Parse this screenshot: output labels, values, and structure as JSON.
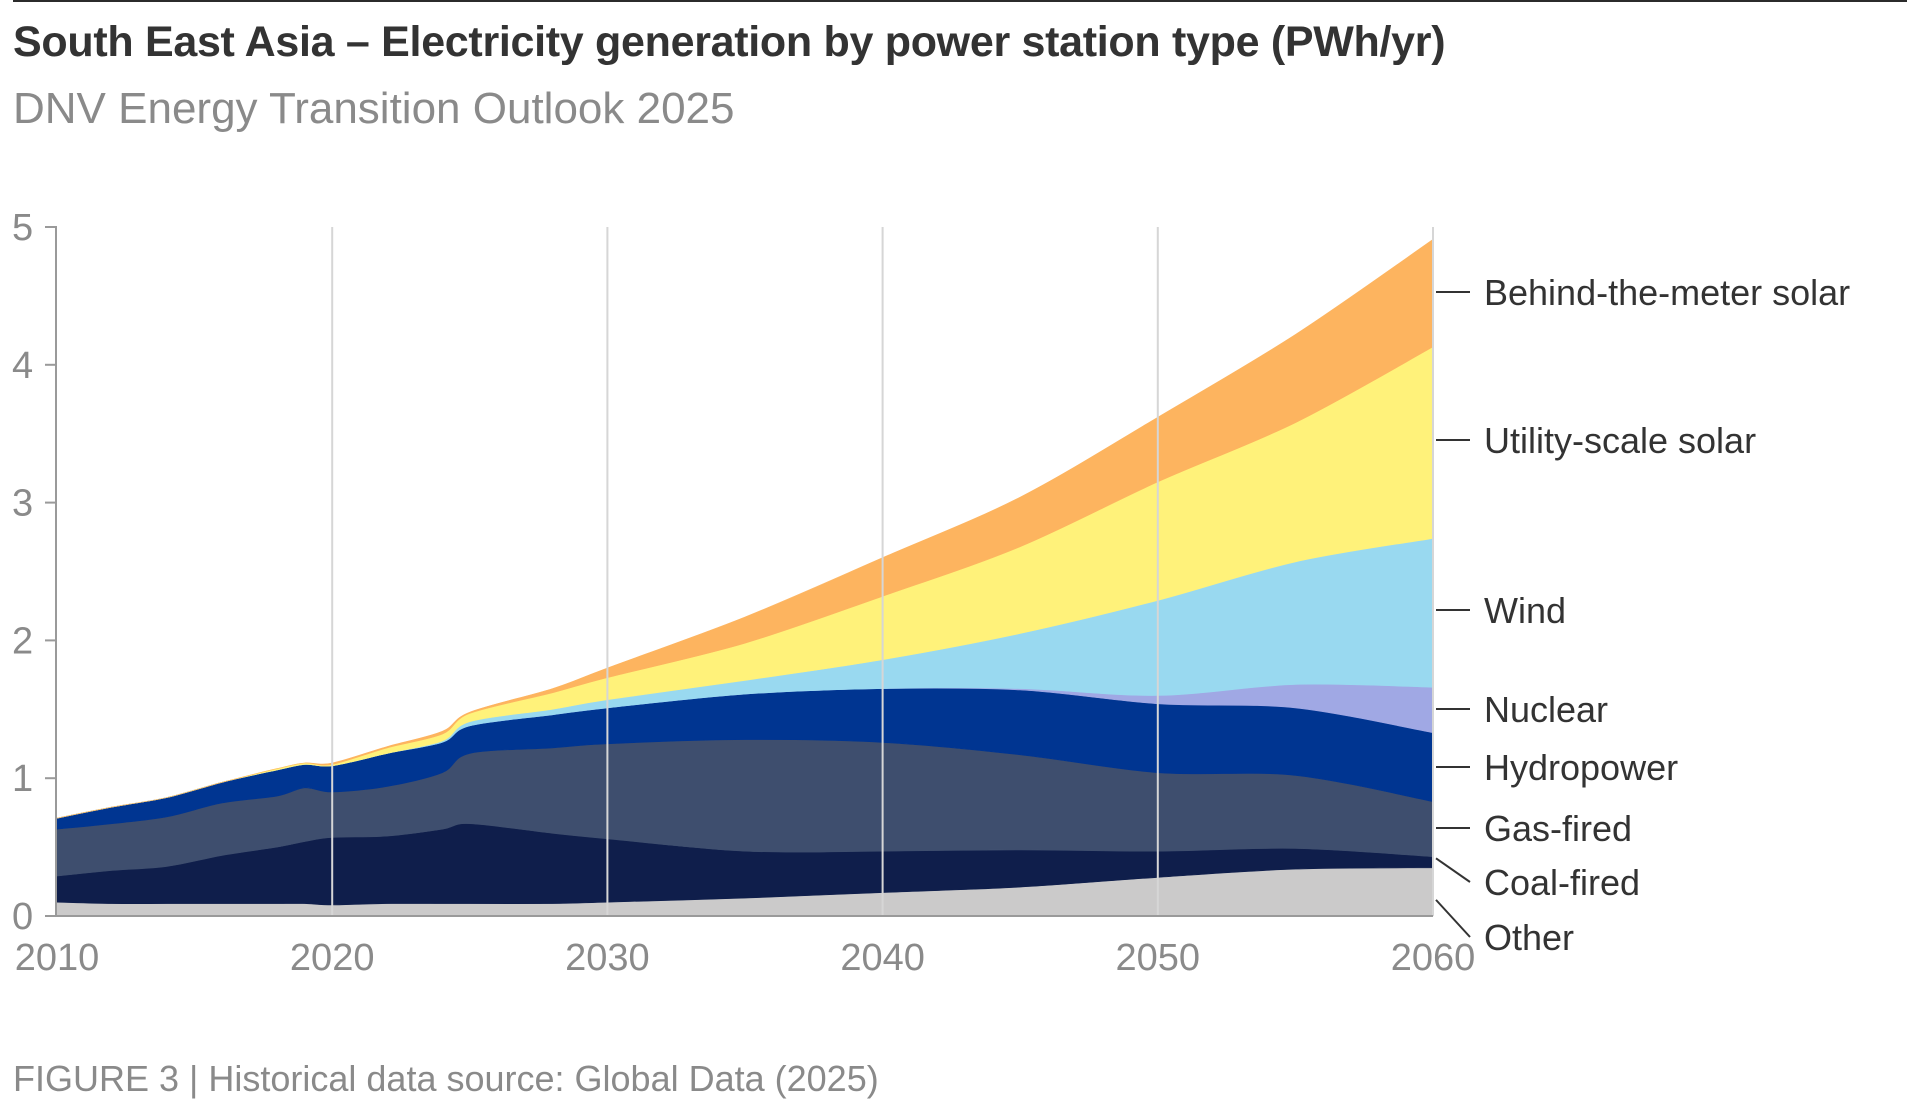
{
  "header": {
    "title": "South East Asia – Electricity generation by power station type (PWh/yr)",
    "subtitle": "DNV Energy Transition Outlook 2025"
  },
  "footer": {
    "caption": "FIGURE 3 | Historical data source: Global Data (2025)"
  },
  "chart_data": {
    "type": "area",
    "stacked": true,
    "title": "South East Asia – Electricity generation by power station type (PWh/yr)",
    "subtitle": "DNV Energy Transition Outlook 2025",
    "xlabel": "",
    "ylabel": "PWh/yr",
    "xlim": [
      2010,
      2060
    ],
    "ylim": [
      0,
      5
    ],
    "x_ticks": [
      "2010",
      "2020",
      "2030",
      "2040",
      "2050",
      "2060"
    ],
    "y_ticks": [
      "0",
      "1",
      "2",
      "3",
      "4",
      "5"
    ],
    "grid": "vertical lines at decade ticks",
    "legend": "direct labels on right",
    "x": [
      2010,
      2012,
      2014,
      2016,
      2018,
      2019,
      2020,
      2022,
      2024,
      2025,
      2028,
      2030,
      2035,
      2040,
      2045,
      2050,
      2055,
      2060
    ],
    "series": [
      {
        "name": "Other",
        "color": "#cbcaca",
        "values": [
          0.1,
          0.09,
          0.09,
          0.09,
          0.09,
          0.09,
          0.08,
          0.09,
          0.09,
          0.09,
          0.09,
          0.1,
          0.13,
          0.17,
          0.21,
          0.28,
          0.34,
          0.35
        ]
      },
      {
        "name": "Coal-fired",
        "color": "#0f1e4b",
        "values": [
          0.19,
          0.24,
          0.27,
          0.35,
          0.41,
          0.45,
          0.49,
          0.49,
          0.54,
          0.58,
          0.51,
          0.46,
          0.34,
          0.3,
          0.27,
          0.19,
          0.15,
          0.08
        ]
      },
      {
        "name": "Gas-fired",
        "color": "#3e4e6e",
        "values": [
          0.34,
          0.34,
          0.36,
          0.38,
          0.37,
          0.39,
          0.33,
          0.36,
          0.41,
          0.51,
          0.62,
          0.69,
          0.81,
          0.79,
          0.69,
          0.57,
          0.53,
          0.4
        ]
      },
      {
        "name": "Hydropower",
        "color": "#003591",
        "values": [
          0.08,
          0.12,
          0.14,
          0.15,
          0.19,
          0.17,
          0.19,
          0.24,
          0.22,
          0.2,
          0.24,
          0.26,
          0.33,
          0.39,
          0.47,
          0.5,
          0.49,
          0.5
        ]
      },
      {
        "name": "Nuclear",
        "color": "#a0a8e4",
        "values": [
          0,
          0,
          0,
          0,
          0,
          0,
          0,
          0,
          0,
          0,
          0,
          0,
          0,
          0,
          0.01,
          0.06,
          0.17,
          0.33
        ]
      },
      {
        "name": "Wind",
        "color": "#99d9f0",
        "values": [
          0,
          0,
          0,
          0,
          0,
          0,
          0,
          0,
          0.01,
          0.03,
          0.04,
          0.06,
          0.1,
          0.21,
          0.4,
          0.69,
          0.89,
          1.08
        ]
      },
      {
        "name": "Utility-scale solar",
        "color": "#fff27a",
        "values": [
          0,
          0,
          0,
          0,
          0.01,
          0.01,
          0.01,
          0.04,
          0.05,
          0.06,
          0.12,
          0.16,
          0.27,
          0.46,
          0.63,
          0.86,
          1.01,
          1.39
        ]
      },
      {
        "name": "Behind-the-meter solar",
        "color": "#fdb45f",
        "values": [
          0,
          0,
          0,
          0,
          0,
          0,
          0.01,
          0.01,
          0.02,
          0.01,
          0.03,
          0.07,
          0.19,
          0.28,
          0.36,
          0.47,
          0.64,
          0.78
        ]
      }
    ],
    "labels_right": [
      "Behind-the-meter solar",
      "Utility-scale solar",
      "Wind",
      "Nuclear",
      "Hydropower",
      "Gas-fired",
      "Coal-fired",
      "Other"
    ]
  }
}
